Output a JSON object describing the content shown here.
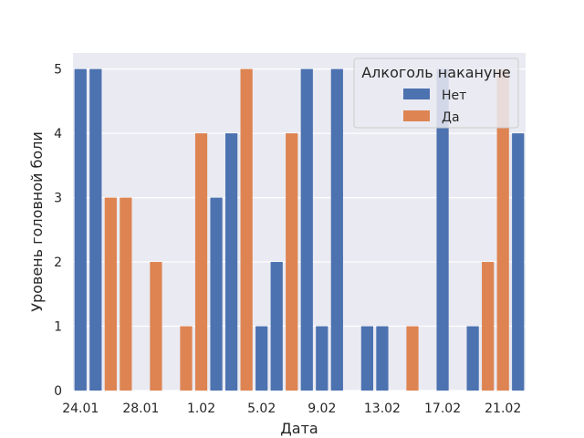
{
  "chart_data": {
    "type": "bar",
    "title": "",
    "xlabel": "Дата",
    "ylabel": "Уровень головной боли",
    "ylim": [
      0,
      5.25
    ],
    "yticks": [
      0,
      1,
      2,
      3,
      4,
      5
    ],
    "grid": true,
    "legend": {
      "title": "Алкоголь накануне",
      "placement": "top-right"
    },
    "colors": {
      "Нет": "#4c72b0",
      "Да": "#dd8452"
    },
    "categories": [
      "24.01",
      "25.01",
      "26.01",
      "27.01",
      "28.01",
      "29.01",
      "30.01",
      "31.01",
      "1.02",
      "2.02",
      "3.02",
      "4.02",
      "5.02",
      "6.02",
      "7.02",
      "8.02",
      "9.02",
      "10.02",
      "11.02",
      "12.02",
      "13.02",
      "14.02",
      "15.02",
      "16.02",
      "17.02",
      "18.02",
      "19.02",
      "20.02",
      "21.02",
      "22.02"
    ],
    "xtick_labels": [
      "24.01",
      "28.01",
      "1.02",
      "5.02",
      "9.02",
      "13.02",
      "17.02",
      "21.02"
    ],
    "series": [
      {
        "name": "Нет",
        "values": [
          5,
          5,
          0,
          0,
          0,
          0,
          0,
          0,
          0,
          3,
          4,
          0,
          1,
          2,
          0,
          5,
          1,
          5,
          0,
          1,
          1,
          0,
          0,
          0,
          5,
          0,
          1,
          0,
          0,
          4
        ]
      },
      {
        "name": "Да",
        "values": [
          0,
          0,
          3,
          3,
          0,
          2,
          0,
          1,
          4,
          0,
          0,
          5,
          0,
          0,
          4,
          0,
          0,
          0,
          0,
          0,
          0,
          0,
          1,
          0,
          0,
          0,
          0,
          2,
          5,
          0
        ]
      }
    ]
  }
}
